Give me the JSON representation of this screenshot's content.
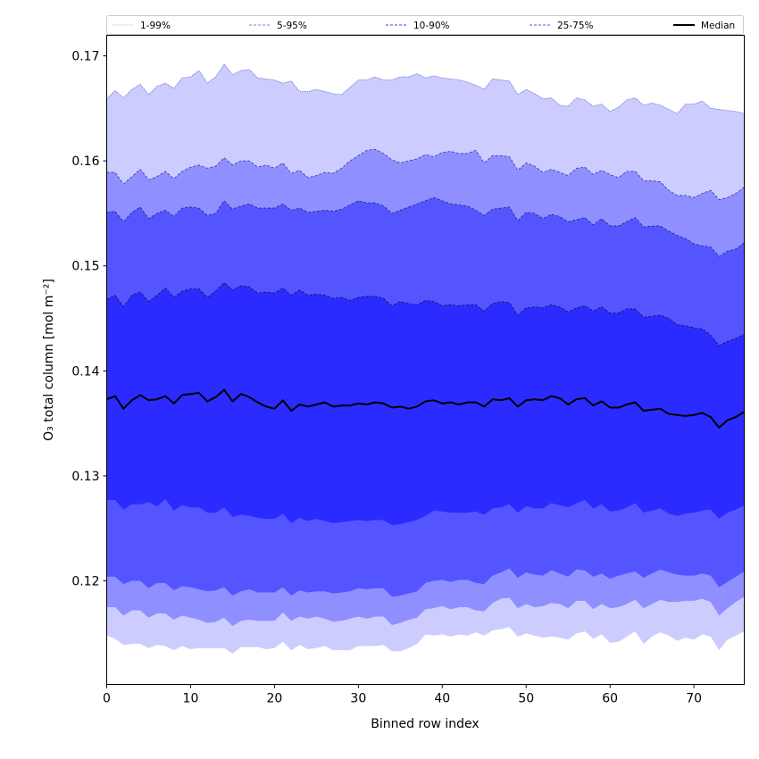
{
  "chart_data": {
    "type": "area",
    "title": "",
    "xlabel": "Binned row index",
    "ylabel": "O₃ total column [mol m⁻²]",
    "xlim": [
      0,
      76
    ],
    "ylim": [
      0.11014,
      0.17196
    ],
    "xticks": [
      0,
      10,
      20,
      30,
      40,
      50,
      60,
      70
    ],
    "xtick_labels": [
      "0",
      "10",
      "20",
      "30",
      "40",
      "50",
      "60",
      "70"
    ],
    "yticks": [
      0.12,
      0.13,
      0.14,
      0.15,
      0.16,
      0.17
    ],
    "ytick_labels": [
      "0.12",
      "0.13",
      "0.14",
      "0.15",
      "0.16",
      "0.17"
    ],
    "grid": false,
    "legend_position": "top",
    "legend": [
      {
        "label": "1-99%",
        "key": "p1_99",
        "line_color": "#ccccff",
        "style": "dotted",
        "fill": "#ccccff"
      },
      {
        "label": "5-95%",
        "key": "p5_95",
        "line_color": "#9999ee",
        "style": "dashed",
        "fill": "#8f8fff"
      },
      {
        "label": "10-90%",
        "key": "p10_90",
        "line_color": "#6666ff",
        "style": "dashed",
        "fill": "#5555ff"
      },
      {
        "label": "25-75%",
        "key": "p25_75",
        "line_color": "#7777ee",
        "style": "dashed",
        "fill": "#2b2bff"
      },
      {
        "label": "Median",
        "key": "median",
        "line_color": "#000000",
        "style": "solid"
      }
    ],
    "x": [
      0,
      1,
      2,
      3,
      4,
      5,
      6,
      7,
      8,
      9,
      10,
      11,
      12,
      13,
      14,
      15,
      16,
      17,
      18,
      19,
      20,
      21,
      22,
      23,
      24,
      25,
      26,
      27,
      28,
      29,
      30,
      31,
      32,
      33,
      34,
      35,
      36,
      37,
      38,
      39,
      40,
      41,
      42,
      43,
      44,
      45,
      46,
      47,
      48,
      49,
      50,
      51,
      52,
      53,
      54,
      55,
      56,
      57,
      58,
      59,
      60,
      61,
      62,
      63,
      64,
      65,
      66,
      67,
      68,
      69,
      70,
      71,
      72,
      73,
      74,
      75,
      76
    ],
    "series": [
      {
        "name": "p99",
        "values": [
          0.1659,
          0.1667,
          0.166,
          0.1668,
          0.1673,
          0.1663,
          0.1671,
          0.1674,
          0.1669,
          0.1679,
          0.168,
          0.1686,
          0.1674,
          0.168,
          0.1692,
          0.1682,
          0.1686,
          0.1687,
          0.1679,
          0.1678,
          0.1677,
          0.1674,
          0.1676,
          0.1666,
          0.1666,
          0.1668,
          0.1666,
          0.1664,
          0.1663,
          0.167,
          0.1677,
          0.1677,
          0.168,
          0.1677,
          0.1677,
          0.168,
          0.168,
          0.1683,
          0.1679,
          0.1681,
          0.1679,
          0.1678,
          0.1677,
          0.1675,
          0.1672,
          0.1668,
          0.1678,
          0.1677,
          0.1676,
          0.1663,
          0.1668,
          0.1664,
          0.1659,
          0.166,
          0.1653,
          0.1652,
          0.166,
          0.1658,
          0.1652,
          0.1654,
          0.1647,
          0.1651,
          0.1658,
          0.166,
          0.1653,
          0.1655,
          0.1653,
          0.1649,
          0.1645,
          0.1654,
          0.1654,
          0.1657,
          0.165,
          0.1649,
          0.1648,
          0.1647,
          0.1645
        ]
      },
      {
        "name": "p95",
        "values": [
          0.1589,
          0.1589,
          0.1578,
          0.1585,
          0.1592,
          0.1582,
          0.1585,
          0.159,
          0.1583,
          0.159,
          0.1594,
          0.1596,
          0.1593,
          0.1595,
          0.1603,
          0.1596,
          0.16,
          0.16,
          0.1594,
          0.1596,
          0.1593,
          0.1598,
          0.1588,
          0.1591,
          0.1584,
          0.1586,
          0.1589,
          0.1588,
          0.1593,
          0.16,
          0.1605,
          0.161,
          0.1611,
          0.1607,
          0.1601,
          0.1598,
          0.16,
          0.1602,
          0.1606,
          0.1604,
          0.1608,
          0.1609,
          0.1607,
          0.1607,
          0.161,
          0.1598,
          0.1605,
          0.1605,
          0.1604,
          0.1591,
          0.1598,
          0.1595,
          0.1589,
          0.1592,
          0.1589,
          0.1586,
          0.1593,
          0.1594,
          0.1587,
          0.1591,
          0.1587,
          0.1584,
          0.159,
          0.159,
          0.1581,
          0.1581,
          0.158,
          0.1572,
          0.1567,
          0.1567,
          0.1565,
          0.1569,
          0.1572,
          0.1563,
          0.1565,
          0.1569,
          0.1575
        ]
      },
      {
        "name": "p90",
        "values": [
          0.1551,
          0.1552,
          0.1542,
          0.1551,
          0.1556,
          0.1545,
          0.155,
          0.1553,
          0.1547,
          0.1555,
          0.1556,
          0.1555,
          0.1548,
          0.155,
          0.1562,
          0.1554,
          0.1557,
          0.1559,
          0.1555,
          0.1555,
          0.1555,
          0.1559,
          0.1553,
          0.1555,
          0.1551,
          0.1552,
          0.1553,
          0.1552,
          0.1554,
          0.1558,
          0.1562,
          0.156,
          0.156,
          0.1557,
          0.155,
          0.1553,
          0.1556,
          0.1559,
          0.1562,
          0.1565,
          0.1562,
          0.1559,
          0.1558,
          0.1557,
          0.1553,
          0.1548,
          0.1554,
          0.1555,
          0.1556,
          0.1543,
          0.1551,
          0.155,
          0.1545,
          0.1549,
          0.1547,
          0.1542,
          0.1544,
          0.1546,
          0.1539,
          0.1545,
          0.1538,
          0.1538,
          0.1542,
          0.1546,
          0.1537,
          0.1538,
          0.1538,
          0.1533,
          0.1529,
          0.1526,
          0.1521,
          0.1519,
          0.1518,
          0.1509,
          0.1514,
          0.1516,
          0.1522
        ]
      },
      {
        "name": "p75",
        "values": [
          0.1468,
          0.1472,
          0.1461,
          0.1472,
          0.1475,
          0.1466,
          0.1472,
          0.1479,
          0.147,
          0.1476,
          0.1478,
          0.1478,
          0.147,
          0.1476,
          0.1484,
          0.1477,
          0.1481,
          0.148,
          0.1474,
          0.1475,
          0.1474,
          0.1479,
          0.1472,
          0.1477,
          0.1472,
          0.1473,
          0.1472,
          0.1469,
          0.147,
          0.1467,
          0.147,
          0.1471,
          0.1471,
          0.1469,
          0.1462,
          0.1466,
          0.1464,
          0.1463,
          0.1467,
          0.1466,
          0.1462,
          0.1463,
          0.1462,
          0.1463,
          0.1463,
          0.1457,
          0.1464,
          0.1466,
          0.1465,
          0.1453,
          0.146,
          0.1461,
          0.146,
          0.1463,
          0.1461,
          0.1456,
          0.146,
          0.1462,
          0.1457,
          0.1461,
          0.1455,
          0.1455,
          0.1459,
          0.1459,
          0.1451,
          0.1452,
          0.1453,
          0.145,
          0.1444,
          0.1443,
          0.1441,
          0.144,
          0.1434,
          0.1424,
          0.1428,
          0.1431,
          0.1435
        ]
      },
      {
        "name": "median",
        "values": [
          0.1373,
          0.1376,
          0.1364,
          0.1372,
          0.1377,
          0.1372,
          0.1373,
          0.1376,
          0.1369,
          0.1377,
          0.1378,
          0.1379,
          0.1371,
          0.1375,
          0.1382,
          0.1371,
          0.1378,
          0.1375,
          0.137,
          0.1366,
          0.1364,
          0.1372,
          0.1362,
          0.1368,
          0.1366,
          0.1368,
          0.137,
          0.1366,
          0.1367,
          0.1367,
          0.1369,
          0.1368,
          0.137,
          0.1369,
          0.1365,
          0.1366,
          0.1364,
          0.1366,
          0.1371,
          0.1372,
          0.1369,
          0.137,
          0.1368,
          0.137,
          0.137,
          0.1366,
          0.1373,
          0.1372,
          0.1374,
          0.1366,
          0.1372,
          0.1373,
          0.1372,
          0.1376,
          0.1374,
          0.1368,
          0.1373,
          0.1374,
          0.1367,
          0.1371,
          0.1365,
          0.1365,
          0.1368,
          0.137,
          0.1362,
          0.1363,
          0.1364,
          0.1359,
          0.1358,
          0.1357,
          0.1358,
          0.136,
          0.1356,
          0.1346,
          0.1353,
          0.1356,
          0.1361
        ]
      },
      {
        "name": "p25",
        "values": [
          0.1277,
          0.1277,
          0.1268,
          0.1273,
          0.1273,
          0.1275,
          0.1271,
          0.1278,
          0.1267,
          0.1272,
          0.127,
          0.127,
          0.1265,
          0.1265,
          0.127,
          0.1261,
          0.1263,
          0.1262,
          0.126,
          0.1259,
          0.1259,
          0.1264,
          0.1255,
          0.126,
          0.1257,
          0.1259,
          0.1257,
          0.1255,
          0.1256,
          0.1257,
          0.1258,
          0.1257,
          0.1258,
          0.1258,
          0.1253,
          0.1254,
          0.1256,
          0.1258,
          0.1262,
          0.1267,
          0.1266,
          0.1265,
          0.1265,
          0.1265,
          0.1266,
          0.1263,
          0.1269,
          0.127,
          0.1273,
          0.1265,
          0.1271,
          0.1269,
          0.1269,
          0.1274,
          0.1272,
          0.127,
          0.1274,
          0.1277,
          0.1269,
          0.1273,
          0.1266,
          0.1267,
          0.127,
          0.1274,
          0.1265,
          0.1267,
          0.1269,
          0.1264,
          0.1262,
          0.1264,
          0.1265,
          0.1267,
          0.1268,
          0.1259,
          0.1265,
          0.1268,
          0.1272
        ]
      },
      {
        "name": "p10",
        "values": [
          0.1204,
          0.1204,
          0.1197,
          0.12,
          0.12,
          0.1193,
          0.1198,
          0.1198,
          0.1191,
          0.1195,
          0.1194,
          0.1192,
          0.119,
          0.1191,
          0.1194,
          0.1186,
          0.119,
          0.1192,
          0.1189,
          0.1189,
          0.1189,
          0.1194,
          0.1186,
          0.1191,
          0.1189,
          0.119,
          0.119,
          0.1188,
          0.1189,
          0.119,
          0.1193,
          0.1192,
          0.1193,
          0.1193,
          0.1185,
          0.1186,
          0.1188,
          0.119,
          0.1198,
          0.12,
          0.1201,
          0.1199,
          0.1201,
          0.1201,
          0.1198,
          0.1197,
          0.1205,
          0.1208,
          0.1212,
          0.1203,
          0.1208,
          0.1206,
          0.1205,
          0.121,
          0.1207,
          0.1204,
          0.1211,
          0.121,
          0.1204,
          0.1207,
          0.1202,
          0.1205,
          0.1207,
          0.1209,
          0.1203,
          0.1207,
          0.1211,
          0.1208,
          0.1206,
          0.1205,
          0.1205,
          0.1207,
          0.1205,
          0.1194,
          0.1199,
          0.1204,
          0.1209
        ]
      },
      {
        "name": "p5",
        "values": [
          0.1175,
          0.1175,
          0.1167,
          0.1172,
          0.1172,
          0.1165,
          0.1169,
          0.1169,
          0.1163,
          0.1167,
          0.1165,
          0.1163,
          0.116,
          0.1161,
          0.1165,
          0.1157,
          0.1162,
          0.1163,
          0.1162,
          0.1162,
          0.1162,
          0.117,
          0.1162,
          0.1166,
          0.1164,
          0.1166,
          0.1164,
          0.1161,
          0.1162,
          0.1164,
          0.1166,
          0.1164,
          0.1166,
          0.1166,
          0.1158,
          0.116,
          0.1163,
          0.1165,
          0.1173,
          0.1174,
          0.1176,
          0.1173,
          0.1175,
          0.1175,
          0.1172,
          0.1171,
          0.1179,
          0.1183,
          0.1184,
          0.1174,
          0.1178,
          0.1175,
          0.1176,
          0.1179,
          0.1178,
          0.1174,
          0.1181,
          0.1181,
          0.1173,
          0.1178,
          0.1174,
          0.1175,
          0.1178,
          0.1182,
          0.1174,
          0.1178,
          0.1182,
          0.118,
          0.118,
          0.1181,
          0.1181,
          0.1183,
          0.118,
          0.1167,
          0.1174,
          0.118,
          0.1185
        ]
      },
      {
        "name": "p1",
        "values": [
          0.1148,
          0.1145,
          0.1139,
          0.114,
          0.114,
          0.1136,
          0.1139,
          0.1138,
          0.1134,
          0.1138,
          0.1135,
          0.1136,
          0.1136,
          0.1136,
          0.1136,
          0.1131,
          0.1137,
          0.1137,
          0.1137,
          0.1135,
          0.1136,
          0.1142,
          0.1134,
          0.1139,
          0.1135,
          0.1136,
          0.1138,
          0.1134,
          0.1134,
          0.1134,
          0.1138,
          0.1138,
          0.1138,
          0.1139,
          0.1133,
          0.1133,
          0.1136,
          0.114,
          0.1149,
          0.1148,
          0.1149,
          0.1147,
          0.1149,
          0.1148,
          0.1151,
          0.1148,
          0.1153,
          0.1154,
          0.1156,
          0.1147,
          0.115,
          0.1148,
          0.1146,
          0.1147,
          0.1146,
          0.1144,
          0.115,
          0.1152,
          0.1145,
          0.1149,
          0.1141,
          0.1142,
          0.1147,
          0.1152,
          0.114,
          0.1147,
          0.1151,
          0.1148,
          0.1143,
          0.1146,
          0.1144,
          0.1149,
          0.1147,
          0.1134,
          0.1144,
          0.1148,
          0.1152
        ]
      }
    ],
    "bands": [
      {
        "legend": "1-99%",
        "lower": "p1",
        "upper": "p99",
        "fill": "#ccccff",
        "edge": "#5555cc"
      },
      {
        "legend": "5-95%",
        "lower": "p5",
        "upper": "p95",
        "fill": "#8f8fff",
        "edge": "#3333aa"
      },
      {
        "legend": "10-90%",
        "lower": "p10",
        "upper": "p90",
        "fill": "#5555ff",
        "edge": "#222288"
      },
      {
        "legend": "25-75%",
        "lower": "p25",
        "upper": "p75",
        "fill": "#2b2bff",
        "edge": "#111155"
      }
    ]
  }
}
